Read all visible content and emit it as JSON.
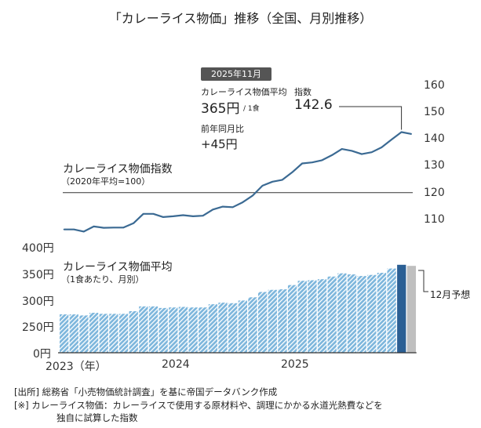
{
  "title": "「カレーライス物価」推移（全国、月別推移）",
  "annotation": {
    "month": "2025年11月",
    "avg_label": "カレーライス物価平均",
    "avg_value": "365円",
    "avg_unit": "/ 1食",
    "index_label": "指数",
    "index_value": "142.6",
    "yoy_label": "前年同月比",
    "yoy_value": "+45円"
  },
  "forecast_label": "12月予想",
  "footer": {
    "source": "[出所]  総務省「小売物価統計調査」を基に帝国データバンク作成",
    "note_line1": "[※]  カレーライス物価：カレーライスで使用する原材料や、調理にかかる水道光熱費などを",
    "note_line2": "独自に試算した指数"
  },
  "colors": {
    "line": "#3b6a93",
    "bar_hatch": "#7db6dc",
    "bar_latest": "#2b5f94",
    "bar_forecast": "#bfbfbf"
  },
  "chart_data": [
    {
      "type": "line",
      "title": "カレーライス物価指数",
      "subtitle": "（2020年平均=100）",
      "ylim": [
        105,
        160
      ],
      "y_ticks": [
        "110",
        "120",
        "130",
        "140",
        "150",
        "160"
      ],
      "reference_line": 120,
      "x": [
        "2023-01",
        "2023-02",
        "2023-03",
        "2023-04",
        "2023-05",
        "2023-06",
        "2023-07",
        "2023-08",
        "2023-09",
        "2023-10",
        "2023-11",
        "2023-12",
        "2024-01",
        "2024-02",
        "2024-03",
        "2024-04",
        "2024-05",
        "2024-06",
        "2024-07",
        "2024-08",
        "2024-09",
        "2024-10",
        "2024-11",
        "2024-12",
        "2025-01",
        "2025-02",
        "2025-03",
        "2025-04",
        "2025-05",
        "2025-06",
        "2025-07",
        "2025-08",
        "2025-09",
        "2025-10",
        "2025-11",
        "2025-12"
      ],
      "values": [
        106.3,
        106.3,
        105.5,
        107.4,
        106.9,
        107.0,
        107.0,
        108.6,
        112.1,
        112.1,
        110.9,
        111.2,
        111.6,
        111.2,
        111.4,
        113.7,
        114.8,
        114.6,
        116.4,
        118.9,
        122.6,
        124.1,
        124.8,
        127.6,
        130.9,
        131.3,
        132.1,
        134.0,
        136.3,
        135.6,
        134.4,
        135.1,
        136.9,
        139.8,
        142.6,
        141.9
      ],
      "right_axis": true
    },
    {
      "type": "bar",
      "title": "カレーライス物価平均",
      "subtitle": "（1食あたり、月別）",
      "y_ticks": [
        "0円",
        "250円",
        "300円",
        "350円",
        "400円"
      ],
      "ylim": [
        0,
        400
      ],
      "axis_break": [
        0,
        250
      ],
      "x_ticks": [
        "2023（年）",
        "2024",
        "2025"
      ],
      "categories": [
        "2023-01",
        "2023-02",
        "2023-03",
        "2023-04",
        "2023-05",
        "2023-06",
        "2023-07",
        "2023-08",
        "2023-09",
        "2023-10",
        "2023-11",
        "2023-12",
        "2024-01",
        "2024-02",
        "2024-03",
        "2024-04",
        "2024-05",
        "2024-06",
        "2024-07",
        "2024-08",
        "2024-09",
        "2024-10",
        "2024-11",
        "2024-12",
        "2025-01",
        "2025-02",
        "2025-03",
        "2025-04",
        "2025-05",
        "2025-06",
        "2025-07",
        "2025-08",
        "2025-09",
        "2025-10",
        "2025-11"
      ],
      "values": [
        272,
        272,
        270,
        275,
        273,
        273,
        273,
        278,
        287,
        287,
        284,
        285,
        286,
        285,
        285,
        291,
        294,
        293,
        298,
        304,
        314,
        318,
        319,
        327,
        335,
        336,
        338,
        343,
        349,
        347,
        344,
        346,
        350,
        358,
        365
      ],
      "forecast": {
        "category": "2025-12",
        "value": 363
      }
    }
  ]
}
